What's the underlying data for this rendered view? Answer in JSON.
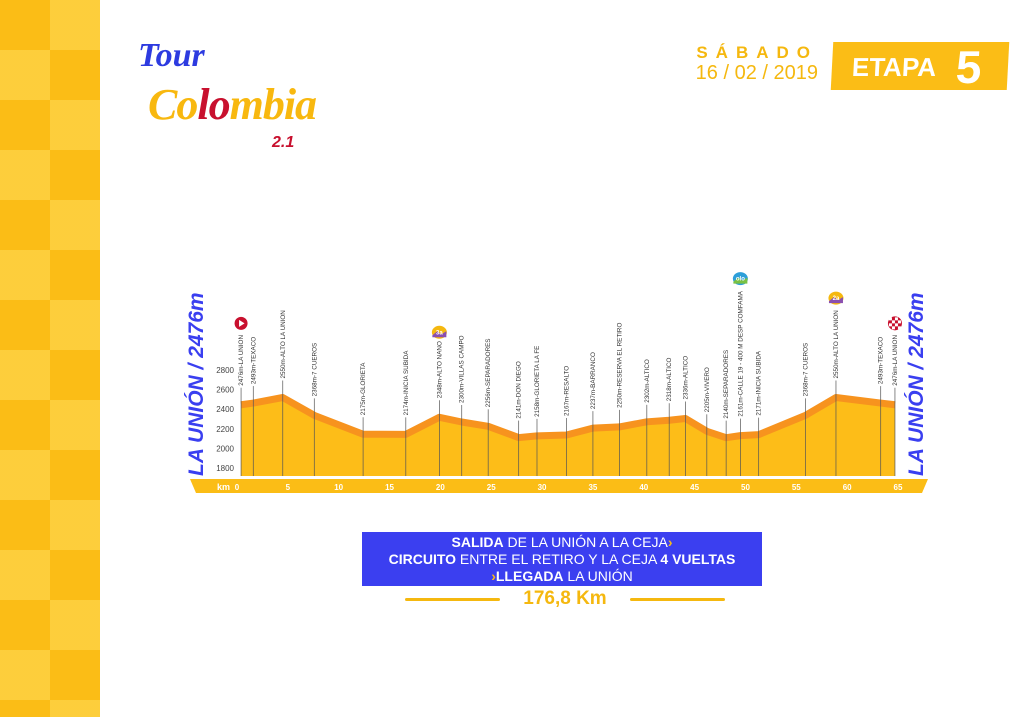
{
  "logo": {
    "tour": "Tour",
    "colombia_a": "Co",
    "colombia_b": "lo",
    "colombia_c": "mbia",
    "edition": "2.1"
  },
  "header": {
    "day": "SÁBADO",
    "date": "16 / 02 / 2019",
    "stage_label": "ETAPA",
    "stage_number": "5"
  },
  "side_labels": {
    "left": "LA UNIÓN / 2476m",
    "right": "LA UNIÓN / 2476m"
  },
  "route": {
    "line1_bold": "SALIDA",
    "line1": " DE LA UNIÓN A LA CEJA",
    "arrow": "›",
    "line2_bold": "CIRCUITO",
    "line2": " ENTRE EL RETIRO Y LA CEJA ",
    "line2_bold2": "4 VUELTAS",
    "line3_bold": "LLEGADA",
    "line3": " LA UNIÓN",
    "distance": "176,8 Km"
  },
  "colors": {
    "yellow": "#fbbd16",
    "profile_fill": "#fdbd18",
    "profile_edge": "#f7931e",
    "blue": "#3b3ff0"
  },
  "chart_data": {
    "type": "area",
    "xlabel": "km",
    "x_ticks": [
      0,
      5,
      10,
      15,
      20,
      25,
      30,
      35,
      40,
      45,
      50,
      55,
      60,
      65
    ],
    "y_ticks": [
      1800,
      2000,
      2200,
      2400,
      2600,
      2800
    ],
    "xlim": [
      0,
      65
    ],
    "ylim": [
      1700,
      2800
    ],
    "points": [
      {
        "km": 0.4,
        "elev": 2476,
        "label": "2476m-LA UNION"
      },
      {
        "km": 1.6,
        "elev": 2493,
        "label": "2493m-TEXACO"
      },
      {
        "km": 4.5,
        "elev": 2550,
        "label": "2550m-ALTO LA UNION"
      },
      {
        "km": 7.6,
        "elev": 2368,
        "label": "2368m-7 CUEROS"
      },
      {
        "km": 12.4,
        "elev": 2175,
        "label": "2175m-GLORIETA"
      },
      {
        "km": 16.6,
        "elev": 2174,
        "label": "2174m-INICIA SUBIDA"
      },
      {
        "km": 19.9,
        "elev": 2348,
        "label": "2348m-ALTO NANO"
      },
      {
        "km": 22.1,
        "elev": 2300,
        "label": "2300m-VILLAS CAMPO"
      },
      {
        "km": 24.7,
        "elev": 2256,
        "label": "2256m-SEPARADORES"
      },
      {
        "km": 27.7,
        "elev": 2141,
        "label": "2141m-DON DIEGO"
      },
      {
        "km": 29.5,
        "elev": 2158,
        "label": "2158m-GLORIETA LA FE"
      },
      {
        "km": 32.4,
        "elev": 2167,
        "label": "2167m-RESALTO"
      },
      {
        "km": 35.0,
        "elev": 2237,
        "label": "2237m-BARRANCO"
      },
      {
        "km": 37.6,
        "elev": 2250,
        "label": "2250m-RESERVA EL RETIRO"
      },
      {
        "km": 40.3,
        "elev": 2302,
        "label": "2302m-ALTICO"
      },
      {
        "km": 42.5,
        "elev": 2318,
        "label": "2318m-ALTICO"
      },
      {
        "km": 44.1,
        "elev": 2336,
        "label": "2336m-ALTICO"
      },
      {
        "km": 46.2,
        "elev": 2205,
        "label": "2205m-VIVERO"
      },
      {
        "km": 48.1,
        "elev": 2140,
        "label": "2140m-SEPARADORES"
      },
      {
        "km": 49.5,
        "elev": 2161,
        "label": "2161m-CALLE 19 - 400 M DESP COMFAMA"
      },
      {
        "km": 51.3,
        "elev": 2171,
        "label": "2171m-INICIA SUBIDA"
      },
      {
        "km": 55.9,
        "elev": 2368,
        "label": "2368m-7 CUEROS"
      },
      {
        "km": 58.9,
        "elev": 2550,
        "label": "2550m-ALTO LA UNION"
      },
      {
        "km": 63.3,
        "elev": 2493,
        "label": "2493m-TEXACO"
      },
      {
        "km": 64.7,
        "elev": 2476,
        "label": "2476m-LA UNION"
      }
    ],
    "markers": [
      {
        "km": 0.4,
        "icon": "start-icon",
        "color": "#c8102e"
      },
      {
        "km": 19.9,
        "icon": "climb-3rd-category-icon",
        "text": "3a",
        "color": "#8a4fb0"
      },
      {
        "km": 49.5,
        "icon": "sprint-icon",
        "text": "olo",
        "color": "#7ac143"
      },
      {
        "km": 58.9,
        "icon": "climb-2nd-category-icon",
        "text": "2a",
        "color": "#8a4fb0"
      },
      {
        "km": 64.7,
        "icon": "finish-flag-icon",
        "color": "#c8102e"
      }
    ]
  }
}
